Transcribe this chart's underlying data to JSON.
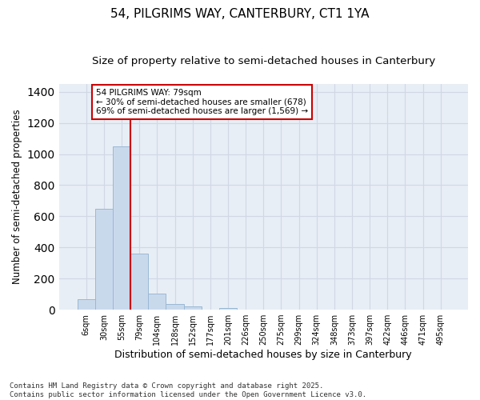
{
  "title1": "54, PILGRIMS WAY, CANTERBURY, CT1 1YA",
  "title2": "Size of property relative to semi-detached houses in Canterbury",
  "xlabel": "Distribution of semi-detached houses by size in Canterbury",
  "ylabel": "Number of semi-detached properties",
  "categories": [
    "6sqm",
    "30sqm",
    "55sqm",
    "79sqm",
    "104sqm",
    "128sqm",
    "152sqm",
    "177sqm",
    "201sqm",
    "226sqm",
    "250sqm",
    "275sqm",
    "299sqm",
    "324sqm",
    "348sqm",
    "373sqm",
    "397sqm",
    "422sqm",
    "446sqm",
    "471sqm",
    "495sqm"
  ],
  "values": [
    65,
    650,
    1050,
    360,
    105,
    38,
    20,
    0,
    12,
    0,
    0,
    0,
    0,
    0,
    0,
    0,
    0,
    0,
    0,
    0,
    0
  ],
  "bar_color": "#c9d9ec",
  "bar_edge_color": "#9ab8d4",
  "vline_color": "#cc0000",
  "annotation_text": "54 PILGRIMS WAY: 79sqm\n← 30% of semi-detached houses are smaller (678)\n69% of semi-detached houses are larger (1,569) →",
  "annotation_box_color": "#cc0000",
  "annotation_bg": "white",
  "ylim": [
    0,
    1450
  ],
  "yticks": [
    0,
    200,
    400,
    600,
    800,
    1000,
    1200,
    1400
  ],
  "footnote": "Contains HM Land Registry data © Crown copyright and database right 2025.\nContains public sector information licensed under the Open Government Licence v3.0.",
  "background_color": "#e8eef5",
  "grid_color": "#d0d8e4",
  "title1_fontsize": 11,
  "title2_fontsize": 9.5,
  "xlabel_fontsize": 9,
  "ylabel_fontsize": 8.5,
  "tick_fontsize": 7,
  "annotation_fontsize": 7.5,
  "footnote_fontsize": 6.5
}
